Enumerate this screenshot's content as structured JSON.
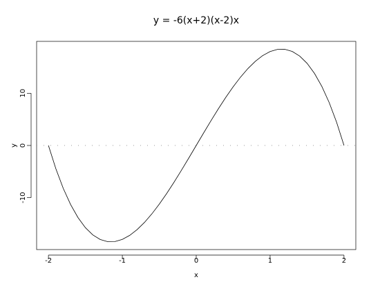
{
  "chart_data": {
    "type": "line",
    "title": "y = -6(x+2)(x-2)x",
    "xlabel": "x",
    "ylabel": "y",
    "x": [
      -2,
      -1.9,
      -1.8,
      -1.7,
      -1.6,
      -1.5,
      -1.4,
      -1.3,
      -1.2,
      -1.1,
      -1,
      -0.9,
      -0.8,
      -0.7,
      -0.6,
      -0.5,
      -0.4,
      -0.3,
      -0.2,
      -0.1,
      0,
      0.1,
      0.2,
      0.3,
      0.4,
      0.5,
      0.6,
      0.7,
      0.8,
      0.9,
      1,
      1.1,
      1.2,
      1.3,
      1.4,
      1.5,
      1.6,
      1.7,
      1.8,
      1.9,
      2
    ],
    "values": [
      0,
      -4.446,
      -8.208,
      -11.322,
      -13.824,
      -15.75,
      -17.136,
      -18.018,
      -18.432,
      -18.414,
      -18,
      -17.226,
      -16.128,
      -14.742,
      -13.104,
      -11.25,
      -9.216,
      -7.038,
      -4.752,
      -2.394,
      0,
      2.394,
      4.752,
      7.038,
      9.216,
      11.25,
      13.104,
      14.742,
      16.128,
      17.226,
      18,
      18.414,
      18.432,
      18.018,
      17.136,
      15.75,
      13.824,
      11.322,
      8.208,
      4.446,
      0
    ],
    "color": "#000000",
    "reference_line": 0,
    "xlim": [
      -2.16,
      2.16
    ],
    "ylim": [
      -19.95,
      19.95
    ],
    "xticks": [
      -2,
      -1,
      0,
      1,
      2
    ],
    "yticks": [
      -10,
      0,
      10
    ]
  }
}
